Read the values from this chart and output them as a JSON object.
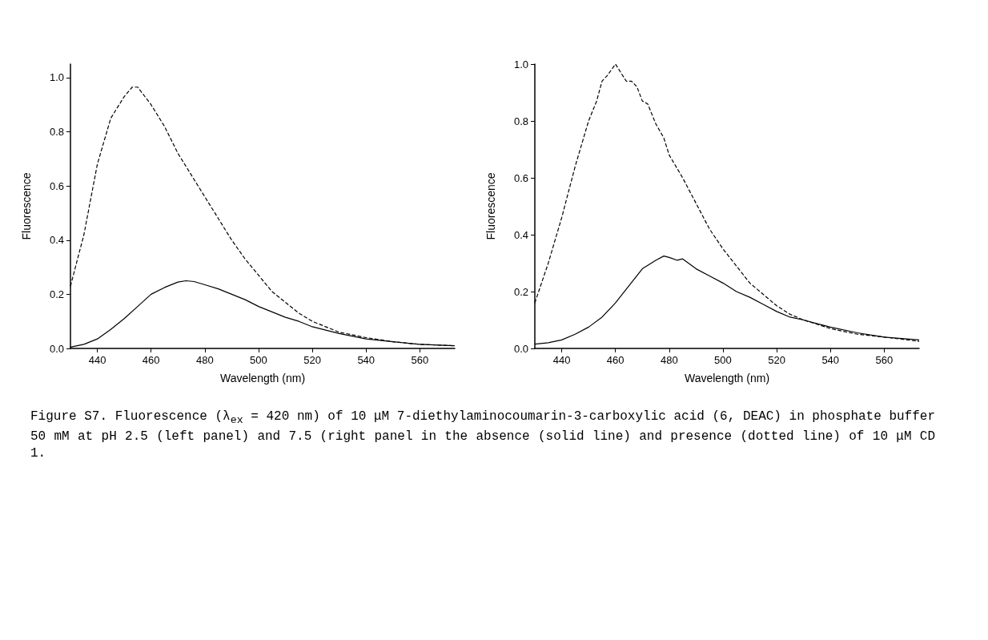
{
  "chart_data": [
    {
      "type": "line",
      "xlabel": "Wavelength (nm)",
      "ylabel": "Fluorescence",
      "xlim": [
        430,
        573
      ],
      "ylim": [
        0,
        1.05
      ],
      "xticks": [
        440,
        460,
        480,
        500,
        520,
        540,
        560
      ],
      "yticks": [
        {
          "value": 0,
          "label": "0.0"
        },
        {
          "value": 0.2,
          "label": "0.2"
        },
        {
          "value": 0.4,
          "label": "0.4"
        },
        {
          "value": 0.6,
          "label": "0.6"
        },
        {
          "value": 0.8,
          "label": "0.8"
        },
        {
          "value": 1,
          "label": "1.0"
        }
      ],
      "grid": false,
      "marker": "none",
      "series": [
        {
          "color": "#000000",
          "line_style": "dashed",
          "x": [
            430,
            435,
            440,
            445,
            450,
            453,
            455,
            460,
            465,
            468,
            470,
            475,
            480,
            485,
            490,
            495,
            500,
            505,
            510,
            515,
            520,
            530,
            540,
            550,
            560,
            573
          ],
          "values": [
            0.23,
            0.42,
            0.68,
            0.85,
            0.93,
            0.965,
            0.965,
            0.9,
            0.82,
            0.76,
            0.72,
            0.64,
            0.56,
            0.48,
            0.4,
            0.33,
            0.27,
            0.21,
            0.17,
            0.13,
            0.1,
            0.06,
            0.04,
            0.025,
            0.015,
            0.01
          ]
        },
        {
          "color": "#000000",
          "line_style": "solid",
          "x": [
            430,
            435,
            440,
            445,
            450,
            455,
            460,
            465,
            470,
            473,
            476,
            480,
            485,
            490,
            495,
            500,
            505,
            510,
            515,
            520,
            530,
            540,
            550,
            560,
            573
          ],
          "values": [
            0.005,
            0.015,
            0.035,
            0.07,
            0.11,
            0.155,
            0.2,
            0.225,
            0.245,
            0.25,
            0.247,
            0.235,
            0.22,
            0.2,
            0.18,
            0.155,
            0.135,
            0.115,
            0.1,
            0.08,
            0.055,
            0.035,
            0.025,
            0.015,
            0.01
          ]
        }
      ],
      "annotations": [
        "Figure S7. Fluorescence (λ$_{ex}$ = 420 nm) of 10 μM 7-diethylaminocoumarin-3-carboxylic acid (6, DEAC) in phosphate buffer 50 mM at pH 2.5 (left panel) and 7.5 (right panel in the absence (solid line) and presence (dotted line) of 10 μM CD 1."
      ]
    },
    {
      "type": "line",
      "xlabel": "Wavelength (nm)",
      "ylabel": "Fluorescence",
      "xlim": [
        430,
        573
      ],
      "ylim": [
        0,
        1
      ],
      "xticks": [
        440,
        460,
        480,
        500,
        520,
        540,
        560
      ],
      "yticks": [
        {
          "value": 0,
          "label": "0.0"
        },
        {
          "value": 0.2,
          "label": "0.2"
        },
        {
          "value": 0.4,
          "label": "0.4"
        },
        {
          "value": 0.6,
          "label": "0.6"
        },
        {
          "value": 0.8,
          "label": "0.8"
        },
        {
          "value": 1,
          "label": "1.0"
        }
      ],
      "grid": false,
      "marker": "none",
      "series": [
        {
          "color": "#000000",
          "line_style": "dashed",
          "x": [
            430,
            435,
            440,
            445,
            450,
            453,
            455,
            457,
            460,
            462,
            464,
            466,
            468,
            470,
            472,
            475,
            478,
            480,
            485,
            490,
            495,
            500,
            505,
            510,
            515,
            520,
            525,
            530,
            540,
            550,
            560,
            573
          ],
          "values": [
            0.16,
            0.3,
            0.46,
            0.64,
            0.8,
            0.87,
            0.94,
            0.96,
            1,
            0.97,
            0.94,
            0.94,
            0.92,
            0.87,
            0.86,
            0.79,
            0.74,
            0.68,
            0.6,
            0.51,
            0.42,
            0.35,
            0.29,
            0.23,
            0.19,
            0.15,
            0.12,
            0.1,
            0.07,
            0.05,
            0.04,
            0.025
          ]
        },
        {
          "color": "#000000",
          "line_style": "solid",
          "x": [
            430,
            435,
            440,
            445,
            450,
            455,
            460,
            465,
            470,
            475,
            478,
            480,
            483,
            485,
            490,
            495,
            500,
            505,
            510,
            515,
            520,
            525,
            530,
            540,
            550,
            560,
            573
          ],
          "values": [
            0.015,
            0.02,
            0.03,
            0.05,
            0.075,
            0.11,
            0.16,
            0.22,
            0.28,
            0.31,
            0.325,
            0.32,
            0.31,
            0.315,
            0.28,
            0.255,
            0.23,
            0.2,
            0.18,
            0.155,
            0.13,
            0.11,
            0.1,
            0.075,
            0.055,
            0.04,
            0.03
          ]
        }
      ]
    }
  ]
}
